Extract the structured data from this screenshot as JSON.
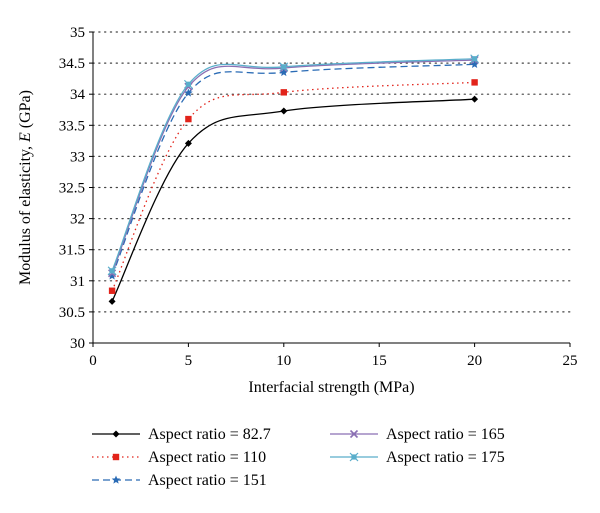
{
  "chart_data": {
    "type": "line",
    "title": "",
    "xlabel": "Interfacial strength (MPa)",
    "ylabel_prefix": "Modulus of elasticity, ",
    "ylabel_symbol": "E",
    "ylabel_suffix": " (GPa)",
    "xlim": [
      0,
      25
    ],
    "ylim": [
      30,
      35
    ],
    "x_ticks": [
      "0",
      "5",
      "10",
      "15",
      "20",
      "25"
    ],
    "y_ticks": [
      "30",
      "30.5",
      "31",
      "31.5",
      "32",
      "32.5",
      "33",
      "33.5",
      "34",
      "34.5",
      "35"
    ],
    "grid": "horizontal dotted",
    "legend_position": "bottom",
    "x": [
      1,
      5,
      10,
      20
    ],
    "series": [
      {
        "name": "Aspect ratio = 82.7",
        "values": [
          30.67,
          33.21,
          33.73,
          33.92
        ],
        "color": "#000000",
        "dash": "solid",
        "marker": "diamond"
      },
      {
        "name": "Aspect ratio = 110",
        "values": [
          30.84,
          33.6,
          34.03,
          34.19
        ],
        "color": "#e2231a",
        "dash": "dotted",
        "marker": "square"
      },
      {
        "name": "Aspect ratio = 151",
        "values": [
          31.08,
          34.02,
          34.35,
          34.48
        ],
        "color": "#2a6bb5",
        "dash": "dashed",
        "marker": "star"
      },
      {
        "name": "Aspect ratio = 165",
        "values": [
          31.12,
          34.12,
          34.42,
          34.55
        ],
        "color": "#8a6fb3",
        "dash": "solid",
        "marker": "cross"
      },
      {
        "name": "Aspect ratio = 175",
        "values": [
          31.16,
          34.16,
          34.44,
          34.57
        ],
        "color": "#5aaecb",
        "dash": "solid",
        "marker": "x-square"
      }
    ]
  }
}
